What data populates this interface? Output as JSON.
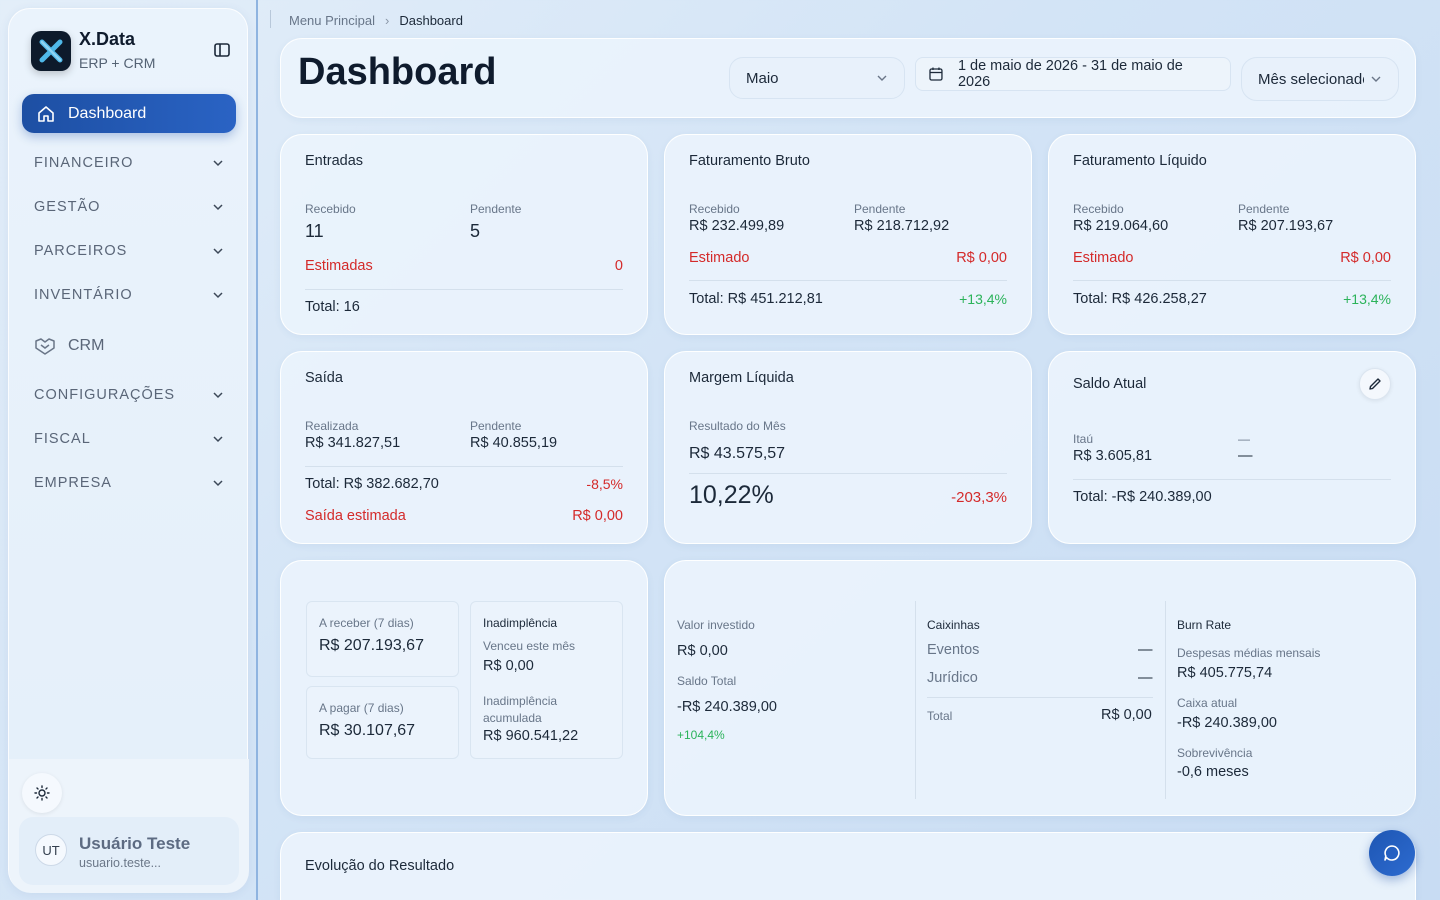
{
  "brand": {
    "name": "X.Data",
    "subtitle": "ERP + CRM"
  },
  "sidebar": {
    "active": "Dashboard",
    "items": [
      {
        "label": "FINANCEIRO"
      },
      {
        "label": "GESTÃO"
      },
      {
        "label": "PARCEIROS"
      },
      {
        "label": "INVENTÁRIO"
      },
      {
        "label": "CRM"
      },
      {
        "label": "CONFIGURAÇÕES"
      },
      {
        "label": "FISCAL"
      },
      {
        "label": "EMPRESA"
      }
    ],
    "user": {
      "initials": "UT",
      "name": "Usuário Teste",
      "email": "usuario.teste..."
    }
  },
  "breadcrumb": {
    "root": "Menu Principal",
    "current": "Dashboard"
  },
  "header": {
    "title": "Dashboard",
    "month": "Maio",
    "date_range": "1 de maio de 2026 - 31 de maio de 2026",
    "mode": "Mês selecionado"
  },
  "entradas": {
    "title": "Entradas",
    "recebido_label": "Recebido",
    "recebido": "11",
    "pendente_label": "Pendente",
    "pendente": "5",
    "estimadas_label": "Estimadas",
    "estimadas": "0",
    "total": "Total: 16"
  },
  "fat_bruto": {
    "title": "Faturamento Bruto",
    "recebido_label": "Recebido",
    "recebido": "R$ 232.499,89",
    "pendente_label": "Pendente",
    "pendente": "R$ 218.712,92",
    "estimado_label": "Estimado",
    "estimado": "R$ 0,00",
    "total": "Total: R$ 451.212,81",
    "delta": "+13,4%"
  },
  "fat_liquido": {
    "title": "Faturamento Líquido",
    "recebido_label": "Recebido",
    "recebido": "R$ 219.064,60",
    "pendente_label": "Pendente",
    "pendente": "R$ 207.193,67",
    "estimado_label": "Estimado",
    "estimado": "R$ 0,00",
    "total": "Total: R$ 426.258,27",
    "delta": "+13,4%"
  },
  "saida": {
    "title": "Saída",
    "realizada_label": "Realizada",
    "realizada": "R$ 341.827,51",
    "pendente_label": "Pendente",
    "pendente": "R$ 40.855,19",
    "total": "Total: R$ 382.682,70",
    "delta": "-8,5%",
    "estimada_label": "Saída estimada",
    "estimada": "R$ 0,00"
  },
  "margem": {
    "title": "Margem Líquida",
    "resultado_label": "Resultado do Mês",
    "resultado": "R$ 43.575,57",
    "percent": "10,22%",
    "delta": "-203,3%"
  },
  "saldo": {
    "title": "Saldo Atual",
    "bank_label": "Itaú",
    "bank_value": "R$ 3.605,81",
    "other_label": "—",
    "other_value": "—",
    "total": "Total: -R$ 240.389,00"
  },
  "receber_pagar": {
    "receber_label": "A receber (7 dias)",
    "receber": "R$ 207.193,67",
    "pagar_label": "A pagar (7 dias)",
    "pagar": "R$ 30.107,67",
    "inad_title": "Inadimplência",
    "venceu_label": "Venceu este mês",
    "venceu": "R$ 0,00",
    "acumulada_label": "Inadimplência acumulada",
    "acumulada": "R$ 960.541,22"
  },
  "investimentos": {
    "invest_label": "Valor investido",
    "invest": "R$ 0,00",
    "saldo_label": "Saldo Total",
    "saldo": "-R$ 240.389,00",
    "saldo_delta": "+104,4%",
    "caixinhas_title": "Caixinhas",
    "eventos_label": "Eventos",
    "eventos": "—",
    "juridico_label": "Jurídico",
    "juridico": "—",
    "total_label": "Total",
    "total": "R$ 0,00",
    "burn_title": "Burn Rate",
    "despesas_label": "Despesas médias mensais",
    "despesas": "R$ 405.775,74",
    "caixa_label": "Caixa atual",
    "caixa": "-R$ 240.389,00",
    "sobrev_label": "Sobrevivência",
    "sobrev": "-0,6 meses"
  },
  "evolucao": {
    "title": "Evolução do Resultado"
  },
  "colors": {
    "accent": "#2a63c4",
    "negative": "#d42a2a",
    "positive": "#2bb35a"
  }
}
